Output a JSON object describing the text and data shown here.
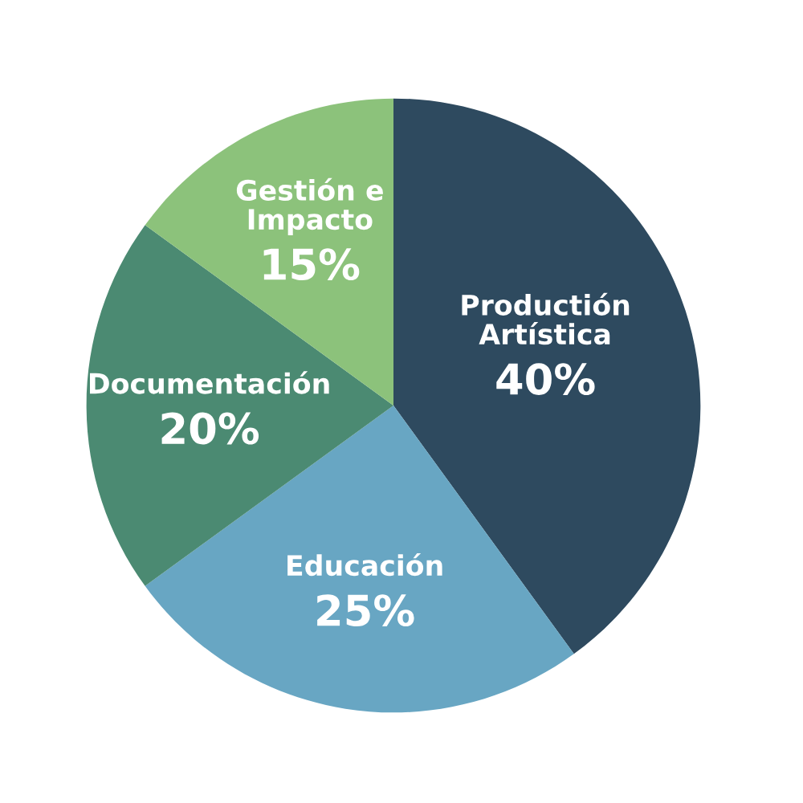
{
  "chart_data": {
    "type": "pie",
    "categories": [
      "Productión\nArtística",
      "Educación",
      "Documentación",
      "Gestión e\nImpacto"
    ],
    "values": [
      40,
      25,
      20,
      15
    ],
    "value_labels": [
      "40%",
      "25%",
      "20%",
      "15%"
    ],
    "colors": [
      "#2e4a5f",
      "#68a6c3",
      "#4b8a72",
      "#8cc27b"
    ]
  }
}
